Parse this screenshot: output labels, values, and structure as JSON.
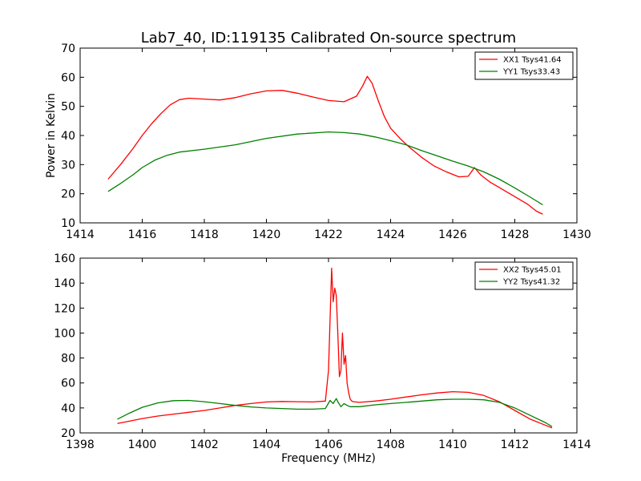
{
  "chart_data": [
    {
      "type": "line",
      "title": "Lab7_40, ID:119135 Calibrated On-source spectrum",
      "xlabel": "",
      "ylabel": "Power in Kelvin",
      "xlim": [
        1414,
        1430
      ],
      "ylim": [
        10,
        70
      ],
      "xticks": [
        "1414",
        "1416",
        "1418",
        "1420",
        "1422",
        "1424",
        "1426",
        "1428",
        "1430"
      ],
      "yticks": [
        "10",
        "20",
        "30",
        "40",
        "50",
        "60",
        "70"
      ],
      "legend_position": "top-right",
      "series": [
        {
          "name": "XX1 Tsys41.64",
          "color": "#ff0000",
          "x": [
            1414.9,
            1415.3,
            1415.7,
            1416.0,
            1416.3,
            1416.6,
            1416.9,
            1417.2,
            1417.5,
            1418.0,
            1418.5,
            1419.0,
            1419.5,
            1420.0,
            1420.5,
            1421.0,
            1421.5,
            1422.0,
            1422.5,
            1422.9,
            1423.1,
            1423.25,
            1423.4,
            1423.6,
            1423.8,
            1424.0,
            1424.3,
            1424.6,
            1425.0,
            1425.4,
            1425.8,
            1426.2,
            1426.5,
            1426.7,
            1426.9,
            1427.2,
            1427.6,
            1428.0,
            1428.4,
            1428.7,
            1428.9
          ],
          "y": [
            25.0,
            30.0,
            35.5,
            40.0,
            44.0,
            47.5,
            50.5,
            52.3,
            52.8,
            52.5,
            52.2,
            53.0,
            54.3,
            55.3,
            55.5,
            54.5,
            53.2,
            52.0,
            51.6,
            53.5,
            57.0,
            60.3,
            58.0,
            52.0,
            46.5,
            42.5,
            39.0,
            36.0,
            32.5,
            29.5,
            27.5,
            25.8,
            26.0,
            29.0,
            26.5,
            24.0,
            21.5,
            19.0,
            16.5,
            14.0,
            13.0
          ]
        },
        {
          "name": "YY1 Tsys33.43",
          "color": "#008000",
          "x": [
            1414.9,
            1415.3,
            1415.7,
            1416.0,
            1416.4,
            1416.8,
            1417.2,
            1418.0,
            1419.0,
            1420.0,
            1421.0,
            1422.0,
            1422.5,
            1423.0,
            1423.5,
            1424.0,
            1424.5,
            1425.0,
            1425.5,
            1426.0,
            1426.5,
            1427.0,
            1427.5,
            1428.0,
            1428.5,
            1428.9
          ],
          "y": [
            20.8,
            23.5,
            26.5,
            29.0,
            31.5,
            33.2,
            34.3,
            35.3,
            36.8,
            39.0,
            40.5,
            41.2,
            41.0,
            40.5,
            39.5,
            38.2,
            36.8,
            34.8,
            33.0,
            31.2,
            29.5,
            27.5,
            25.0,
            22.0,
            18.8,
            16.2
          ]
        }
      ]
    },
    {
      "type": "line",
      "title": "",
      "xlabel": "Frequency (MHz)",
      "ylabel": "",
      "xlim": [
        1398,
        1414
      ],
      "ylim": [
        20,
        160
      ],
      "xticks": [
        "1398",
        "1400",
        "1402",
        "1404",
        "1406",
        "1408",
        "1410",
        "1412",
        "1414"
      ],
      "yticks": [
        "20",
        "40",
        "60",
        "80",
        "100",
        "120",
        "140",
        "160"
      ],
      "legend_position": "top-right",
      "series": [
        {
          "name": "XX2 Tsys45.01",
          "color": "#ff0000",
          "x": [
            1399.2,
            1399.6,
            1400.0,
            1400.5,
            1401.0,
            1401.5,
            1402.0,
            1402.5,
            1403.0,
            1403.5,
            1404.0,
            1404.5,
            1405.0,
            1405.5,
            1405.9,
            1406.0,
            1406.05,
            1406.1,
            1406.15,
            1406.2,
            1406.25,
            1406.3,
            1406.35,
            1406.4,
            1406.45,
            1406.5,
            1406.55,
            1406.6,
            1406.65,
            1406.7,
            1406.75,
            1406.8,
            1407.0,
            1407.5,
            1408.0,
            1408.5,
            1409.0,
            1409.5,
            1410.0,
            1410.5,
            1411.0,
            1411.5,
            1412.0,
            1412.5,
            1413.0,
            1413.2
          ],
          "y": [
            27.5,
            29.5,
            31.5,
            33.5,
            35.0,
            36.5,
            38.0,
            40.0,
            42.0,
            43.5,
            44.8,
            45.2,
            45.0,
            44.8,
            45.5,
            70.0,
            110.0,
            152.0,
            125.0,
            136.0,
            130.0,
            100.0,
            65.0,
            70.0,
            100.0,
            75.0,
            82.0,
            60.0,
            52.0,
            47.0,
            45.5,
            45.0,
            44.5,
            45.5,
            47.0,
            48.8,
            50.5,
            52.0,
            53.0,
            52.5,
            50.0,
            45.0,
            38.0,
            31.0,
            26.0,
            24.0
          ]
        },
        {
          "name": "YY2 Tsys41.32",
          "color": "#008000",
          "x": [
            1399.2,
            1399.6,
            1400.0,
            1400.5,
            1401.0,
            1401.5,
            1402.0,
            1402.5,
            1403.0,
            1403.5,
            1404.0,
            1404.5,
            1405.0,
            1405.5,
            1405.9,
            1406.05,
            1406.15,
            1406.25,
            1406.3,
            1406.4,
            1406.5,
            1406.6,
            1406.7,
            1407.0,
            1407.5,
            1408.0,
            1408.5,
            1409.0,
            1409.5,
            1410.0,
            1410.5,
            1411.0,
            1411.5,
            1412.0,
            1412.5,
            1413.0,
            1413.2
          ],
          "y": [
            31.0,
            36.0,
            40.5,
            44.0,
            45.8,
            46.0,
            45.0,
            43.5,
            42.0,
            40.8,
            40.0,
            39.5,
            39.0,
            39.0,
            39.5,
            46.0,
            43.5,
            47.5,
            45.0,
            41.0,
            43.5,
            42.0,
            41.0,
            41.0,
            42.5,
            43.5,
            44.5,
            45.5,
            46.5,
            47.0,
            47.0,
            46.5,
            44.5,
            40.0,
            34.0,
            28.0,
            25.0
          ]
        }
      ]
    }
  ]
}
